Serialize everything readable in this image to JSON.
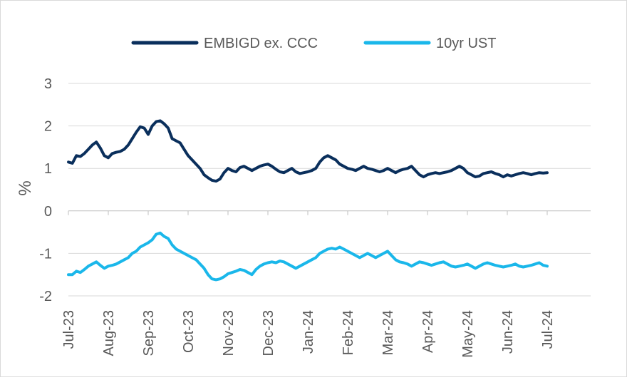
{
  "chart_data": {
    "type": "line",
    "title": "",
    "xlabel": "",
    "ylabel": "%",
    "ylim": [
      -2,
      3
    ],
    "yticks": [
      3,
      2,
      1,
      0,
      -1,
      -2
    ],
    "grid": true,
    "legend": "top-center",
    "x_ticks": [
      "Jul-23",
      "Aug-23",
      "Sep-23",
      "Oct-23",
      "Nov-23",
      "Dec-23",
      "Jan-24",
      "Feb-24",
      "Mar-24",
      "Apr-24",
      "May-24",
      "Jun-24",
      "Jul-24"
    ],
    "series": [
      {
        "name": "EMBIGD ex. CCC",
        "color": "#0a2f5c",
        "x": [
          0,
          0.1,
          0.2,
          0.3,
          0.4,
          0.5,
          0.6,
          0.7,
          0.8,
          0.9,
          1.0,
          1.1,
          1.2,
          1.3,
          1.4,
          1.5,
          1.6,
          1.7,
          1.8,
          1.9,
          2.0,
          2.1,
          2.2,
          2.3,
          2.4,
          2.5,
          2.6,
          2.7,
          2.8,
          2.9,
          3.0,
          3.1,
          3.2,
          3.3,
          3.4,
          3.5,
          3.6,
          3.7,
          3.8,
          3.9,
          4.0,
          4.1,
          4.2,
          4.3,
          4.4,
          4.5,
          4.6,
          4.7,
          4.8,
          4.9,
          5.0,
          5.1,
          5.2,
          5.3,
          5.4,
          5.5,
          5.6,
          5.7,
          5.8,
          5.9,
          6.0,
          6.1,
          6.2,
          6.3,
          6.4,
          6.5,
          6.6,
          6.7,
          6.8,
          6.9,
          7.0,
          7.1,
          7.2,
          7.3,
          7.4,
          7.5,
          7.6,
          7.7,
          7.8,
          7.9,
          8.0,
          8.1,
          8.2,
          8.3,
          8.4,
          8.5,
          8.6,
          8.7,
          8.8,
          8.9,
          9.0,
          9.1,
          9.2,
          9.3,
          9.4,
          9.5,
          9.6,
          9.7,
          9.8,
          9.9,
          10.0,
          10.1,
          10.2,
          10.3,
          10.4,
          10.5,
          10.6,
          10.7,
          10.8,
          10.9,
          11.0,
          11.1,
          11.2,
          11.3,
          11.4,
          11.5,
          11.6,
          11.7,
          11.8,
          11.9,
          12.0
        ],
        "values": [
          1.15,
          1.12,
          1.3,
          1.28,
          1.35,
          1.45,
          1.55,
          1.62,
          1.48,
          1.3,
          1.25,
          1.35,
          1.38,
          1.4,
          1.45,
          1.55,
          1.7,
          1.85,
          1.98,
          1.95,
          1.8,
          2.0,
          2.1,
          2.12,
          2.05,
          1.95,
          1.7,
          1.65,
          1.6,
          1.45,
          1.3,
          1.2,
          1.1,
          1.0,
          0.85,
          0.78,
          0.72,
          0.7,
          0.75,
          0.9,
          1.0,
          0.95,
          0.92,
          1.02,
          1.05,
          1.0,
          0.95,
          1.0,
          1.05,
          1.08,
          1.1,
          1.05,
          0.98,
          0.92,
          0.9,
          0.95,
          1.0,
          0.92,
          0.88,
          0.9,
          0.92,
          0.95,
          1.0,
          1.15,
          1.25,
          1.3,
          1.25,
          1.2,
          1.1,
          1.05,
          1.0,
          0.98,
          0.95,
          1.0,
          1.05,
          1.0,
          0.98,
          0.95,
          0.92,
          0.95,
          1.0,
          0.95,
          0.9,
          0.95,
          0.98,
          1.0,
          1.05,
          0.95,
          0.85,
          0.8,
          0.85,
          0.88,
          0.9,
          0.88,
          0.9,
          0.92,
          0.95,
          1.0,
          1.05,
          1.0,
          0.9,
          0.85,
          0.8,
          0.82,
          0.88,
          0.9,
          0.92,
          0.88,
          0.85,
          0.8,
          0.85,
          0.82,
          0.85,
          0.88,
          0.9,
          0.88,
          0.85,
          0.88,
          0.9,
          0.89,
          0.9
        ]
      },
      {
        "name": "10yr UST",
        "color": "#1ab7ea",
        "x": [
          0,
          0.1,
          0.2,
          0.3,
          0.4,
          0.5,
          0.6,
          0.7,
          0.8,
          0.9,
          1.0,
          1.1,
          1.2,
          1.3,
          1.4,
          1.5,
          1.6,
          1.7,
          1.8,
          1.9,
          2.0,
          2.1,
          2.2,
          2.3,
          2.4,
          2.5,
          2.6,
          2.7,
          2.8,
          2.9,
          3.0,
          3.1,
          3.2,
          3.3,
          3.4,
          3.5,
          3.6,
          3.7,
          3.8,
          3.9,
          4.0,
          4.1,
          4.2,
          4.3,
          4.4,
          4.5,
          4.6,
          4.7,
          4.8,
          4.9,
          5.0,
          5.1,
          5.2,
          5.3,
          5.4,
          5.5,
          5.6,
          5.7,
          5.8,
          5.9,
          6.0,
          6.1,
          6.2,
          6.3,
          6.4,
          6.5,
          6.6,
          6.7,
          6.8,
          6.9,
          7.0,
          7.1,
          7.2,
          7.3,
          7.4,
          7.5,
          7.6,
          7.7,
          7.8,
          7.9,
          8.0,
          8.1,
          8.2,
          8.3,
          8.4,
          8.5,
          8.6,
          8.7,
          8.8,
          8.9,
          9.0,
          9.1,
          9.2,
          9.3,
          9.4,
          9.5,
          9.6,
          9.7,
          9.8,
          9.9,
          10.0,
          10.1,
          10.2,
          10.3,
          10.4,
          10.5,
          10.6,
          10.7,
          10.8,
          10.9,
          11.0,
          11.1,
          11.2,
          11.3,
          11.4,
          11.5,
          11.6,
          11.7,
          11.8,
          11.9,
          12.0
        ],
        "values": [
          -1.5,
          -1.5,
          -1.42,
          -1.45,
          -1.38,
          -1.3,
          -1.25,
          -1.2,
          -1.28,
          -1.35,
          -1.3,
          -1.28,
          -1.25,
          -1.2,
          -1.15,
          -1.1,
          -1.0,
          -0.95,
          -0.85,
          -0.8,
          -0.75,
          -0.68,
          -0.55,
          -0.52,
          -0.6,
          -0.65,
          -0.8,
          -0.9,
          -0.95,
          -1.0,
          -1.05,
          -1.1,
          -1.15,
          -1.25,
          -1.35,
          -1.5,
          -1.6,
          -1.62,
          -1.6,
          -1.55,
          -1.48,
          -1.45,
          -1.42,
          -1.38,
          -1.4,
          -1.45,
          -1.5,
          -1.38,
          -1.3,
          -1.25,
          -1.22,
          -1.2,
          -1.22,
          -1.18,
          -1.2,
          -1.25,
          -1.3,
          -1.35,
          -1.3,
          -1.25,
          -1.2,
          -1.15,
          -1.1,
          -1.0,
          -0.95,
          -0.9,
          -0.88,
          -0.9,
          -0.85,
          -0.9,
          -0.95,
          -1.0,
          -1.05,
          -1.1,
          -1.05,
          -1.0,
          -1.05,
          -1.1,
          -1.05,
          -1.0,
          -0.95,
          -1.05,
          -1.15,
          -1.2,
          -1.22,
          -1.25,
          -1.3,
          -1.25,
          -1.2,
          -1.22,
          -1.25,
          -1.28,
          -1.25,
          -1.22,
          -1.2,
          -1.25,
          -1.3,
          -1.32,
          -1.3,
          -1.28,
          -1.25,
          -1.3,
          -1.35,
          -1.3,
          -1.25,
          -1.22,
          -1.25,
          -1.28,
          -1.3,
          -1.32,
          -1.3,
          -1.28,
          -1.25,
          -1.3,
          -1.32,
          -1.3,
          -1.28,
          -1.25,
          -1.22,
          -1.28,
          -1.3
        ]
      }
    ]
  }
}
